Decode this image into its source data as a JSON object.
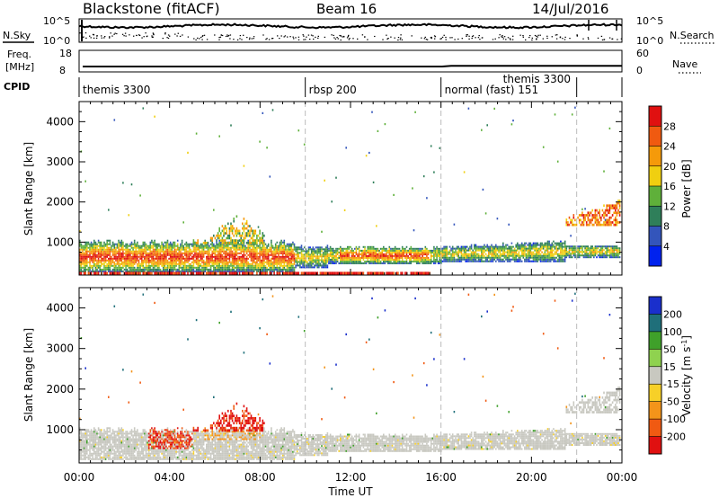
{
  "header": {
    "station": "Blackstone (fitACF)",
    "beam": "Beam 16",
    "date": "14/Jul/2016"
  },
  "top_panels": {
    "nsky": {
      "label": "N.Sky",
      "ticks": [
        "10^5",
        "10^0"
      ]
    },
    "nsearch": {
      "label": "N.Search",
      "ticks": [
        "10^5",
        "10^0"
      ]
    },
    "freq": {
      "label_line1": "Freq.",
      "label_line2": "[MHz]",
      "ticks": [
        "18",
        "8"
      ],
      "value_mhz": 10.5
    },
    "nave": {
      "label": "Nave",
      "ticks": [
        "60",
        "0"
      ]
    },
    "cpid": {
      "label": "CPID",
      "segments": [
        {
          "name": "themis 3300",
          "start_h": 0,
          "end_h": 10
        },
        {
          "name": "rbsp 200",
          "start_h": 10,
          "end_h": 16
        },
        {
          "name": "normal (fast) 151",
          "start_h": 16,
          "end_h": 22
        },
        {
          "name": "themis 3300",
          "start_h": 22,
          "end_h": 24
        }
      ]
    }
  },
  "x_axis": {
    "label": "Time UT",
    "ticks": [
      "00:00",
      "04:00",
      "08:00",
      "12:00",
      "16:00",
      "20:00",
      "00:00"
    ],
    "range_h": [
      0,
      24
    ]
  },
  "chart_data": [
    {
      "type": "heatmap",
      "panel": "power",
      "ylabel": "Slant Range [km]",
      "yticks": [
        1000,
        2000,
        3000,
        4000
      ],
      "ylim": [
        180,
        4500
      ],
      "xlim_hours": [
        0,
        24
      ],
      "colorbar": {
        "label": "Power [dB]",
        "ticks": [
          "4",
          "8",
          "12",
          "16",
          "20",
          "24",
          "28"
        ],
        "colors": [
          "#0022ee",
          "#3355bb",
          "#2f7f5a",
          "#5fb03a",
          "#f0cf10",
          "#f59a0a",
          "#f05a10",
          "#e01010"
        ],
        "range": [
          0,
          32
        ]
      }
    },
    {
      "type": "heatmap",
      "panel": "velocity",
      "ylabel": "Slant Range [km]",
      "yticks": [
        1000,
        2000,
        3000,
        4000
      ],
      "ylim": [
        180,
        4500
      ],
      "xlim_hours": [
        0,
        24
      ],
      "colorbar": {
        "label": "Velocity [m s^-1]",
        "ticks": [
          "200",
          "100",
          "50",
          "15",
          "-15",
          "-50",
          "-100",
          "-200"
        ],
        "colors": [
          "#1a2fcc",
          "#1f6f7a",
          "#3fa02a",
          "#8fd24f",
          "#c8c8c0",
          "#f7d028",
          "#f3941a",
          "#f05a12",
          "#e01010"
        ]
      }
    }
  ]
}
